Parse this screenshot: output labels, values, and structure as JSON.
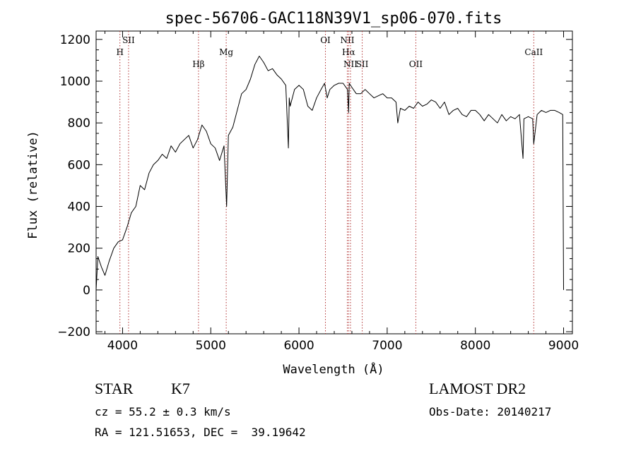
{
  "chart_data": {
    "type": "line",
    "title": "spec-56706-GAC118N39V1_sp06-070.fits",
    "xlabel": "Wavelength (Å)",
    "ylabel": "Flux (relative)",
    "xlim": [
      3700,
      9100
    ],
    "ylim": [
      -210,
      1240
    ],
    "xticks": [
      4000,
      5000,
      6000,
      7000,
      8000,
      9000
    ],
    "yticks": [
      -200,
      0,
      200,
      400,
      600,
      800,
      1000,
      1200
    ],
    "grid": false,
    "line_color": "#000000",
    "marker_color": "#b03030",
    "series": [
      {
        "x": [
          3700,
          3720,
          3760,
          3800,
          3850,
          3900,
          3950,
          4000,
          4050,
          4100,
          4150,
          4200,
          4250,
          4300,
          4350,
          4400,
          4450,
          4500,
          4550,
          4600,
          4650,
          4700,
          4750,
          4800,
          4850,
          4900,
          4950,
          5000,
          5050,
          5100,
          5150,
          5180,
          5200,
          5250,
          5300,
          5350,
          5400,
          5450,
          5500,
          5550,
          5600,
          5650,
          5700,
          5750,
          5800,
          5850,
          5880,
          5890,
          5900,
          5950,
          6000,
          6050,
          6100,
          6150,
          6200,
          6250,
          6290,
          6320,
          6350,
          6400,
          6450,
          6500,
          6550,
          6563,
          6570,
          6600,
          6650,
          6700,
          6750,
          6800,
          6850,
          6900,
          6950,
          7000,
          7050,
          7100,
          7120,
          7150,
          7200,
          7250,
          7300,
          7350,
          7400,
          7450,
          7500,
          7550,
          7600,
          7650,
          7700,
          7750,
          7800,
          7850,
          7900,
          7950,
          8000,
          8050,
          8100,
          8150,
          8200,
          8250,
          8300,
          8350,
          8400,
          8450,
          8500,
          8540,
          8550,
          8600,
          8650,
          8662,
          8700,
          8750,
          8800,
          8850,
          8900,
          8950,
          8990,
          9000
        ],
        "y": [
          0,
          160,
          110,
          70,
          140,
          200,
          230,
          240,
          300,
          370,
          400,
          500,
          480,
          560,
          600,
          620,
          650,
          630,
          690,
          660,
          700,
          720,
          740,
          680,
          720,
          790,
          760,
          700,
          680,
          620,
          690,
          400,
          740,
          780,
          860,
          940,
          960,
          1010,
          1080,
          1120,
          1090,
          1050,
          1060,
          1030,
          1010,
          980,
          680,
          920,
          880,
          960,
          980,
          960,
          880,
          860,
          920,
          960,
          990,
          920,
          960,
          980,
          990,
          990,
          960,
          850,
          990,
          970,
          940,
          940,
          960,
          940,
          920,
          930,
          940,
          920,
          920,
          900,
          800,
          870,
          860,
          880,
          870,
          900,
          880,
          890,
          910,
          900,
          870,
          900,
          840,
          860,
          870,
          840,
          830,
          860,
          860,
          840,
          810,
          840,
          820,
          800,
          840,
          810,
          830,
          820,
          840,
          630,
          820,
          830,
          820,
          700,
          840,
          860,
          850,
          860,
          860,
          850,
          840,
          0
        ]
      }
    ],
    "line_markers": [
      {
        "label": "H",
        "x": 3970,
        "row": 2
      },
      {
        "label": "SII",
        "x": 4068,
        "row": 1
      },
      {
        "label": "Hβ",
        "x": 4861,
        "row": 3
      },
      {
        "label": "Mg",
        "x": 5175,
        "row": 2
      },
      {
        "label": "OI",
        "x": 6300,
        "row": 1
      },
      {
        "label": "NII",
        "x": 6548,
        "row": 1
      },
      {
        "label": "Hα",
        "x": 6563,
        "row": 2
      },
      {
        "label": "NII",
        "x": 6584,
        "row": 3
      },
      {
        "label": "SII",
        "x": 6717,
        "row": 3
      },
      {
        "label": "OII",
        "x": 7325,
        "row": 3
      },
      {
        "label": "CaII",
        "x": 8662,
        "row": 2
      }
    ]
  },
  "info": {
    "object_class": "STAR",
    "subclass": "K7",
    "survey": "LAMOST DR2",
    "redshift_line": "cz = 55.2 ± 0.3 km/s",
    "obs_date_line": "Obs-Date: 20140217",
    "coords_line": "RA = 121.51653, DEC =  39.19642"
  }
}
